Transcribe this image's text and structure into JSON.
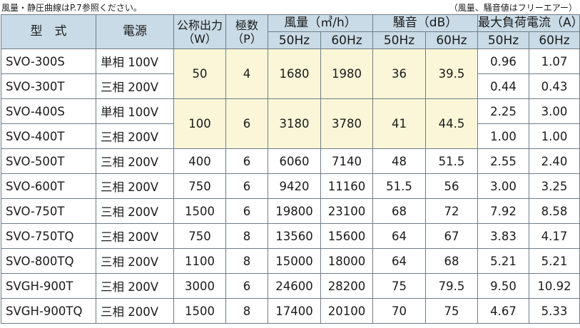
{
  "notes": {
    "left": "風量・静圧曲線はP.7参照ください。",
    "right": "（風量、騒音値はフリーエアー）"
  },
  "headers": {
    "model": "型　式",
    "power": "電源",
    "output": "公称出力",
    "output_unit": "（W）",
    "poles": "極数",
    "poles_unit": "（P）",
    "airflow": "風量（㎥/h）",
    "noise": "騒音（dB）",
    "current": "最大負荷電流（A）",
    "hz50": "50Hz",
    "hz60": "60Hz"
  },
  "rows": [
    {
      "model": "SVO-300S",
      "power": "単相 100V",
      "output": "50",
      "poles": "4",
      "air50": "1680",
      "air60": "1980",
      "noise50": "36",
      "noise60": "39.5",
      "cur50": "0.96",
      "cur60": "1.07"
    },
    {
      "model": "SVO-300T",
      "power": "三相 200V",
      "cur50": "0.44",
      "cur60": "0.43"
    },
    {
      "model": "SVO-400S",
      "power": "単相 100V",
      "output": "100",
      "poles": "6",
      "air50": "3180",
      "air60": "3780",
      "noise50": "41",
      "noise60": "44.5",
      "cur50": "2.25",
      "cur60": "3.00"
    },
    {
      "model": "SVO-400T",
      "power": "三相 200V",
      "cur50": "1.00",
      "cur60": "1.00"
    },
    {
      "model": "SVO-500T",
      "power": "三相 200V",
      "output": "400",
      "poles": "6",
      "air50": "6060",
      "air60": "7140",
      "noise50": "48",
      "noise60": "51.5",
      "cur50": "2.55",
      "cur60": "2.40"
    },
    {
      "model": "SVO-600T",
      "power": "三相 200V",
      "output": "750",
      "poles": "6",
      "air50": "9420",
      "air60": "11160",
      "noise50": "51.5",
      "noise60": "56",
      "cur50": "3.00",
      "cur60": "3.25"
    },
    {
      "model": "SVO-750T",
      "power": "三相 200V",
      "output": "1500",
      "poles": "6",
      "air50": "19800",
      "air60": "23100",
      "noise50": "68",
      "noise60": "72",
      "cur50": "7.92",
      "cur60": "8.58"
    },
    {
      "model": "SVO-750TQ",
      "power": "三相 200V",
      "output": "750",
      "poles": "8",
      "air50": "13560",
      "air60": "15600",
      "noise50": "64",
      "noise60": "67",
      "cur50": "3.83",
      "cur60": "4.17"
    },
    {
      "model": "SVO-800TQ",
      "power": "三相 200V",
      "output": "1100",
      "poles": "8",
      "air50": "15000",
      "air60": "18000",
      "noise50": "64",
      "noise60": "68",
      "cur50": "5.21",
      "cur60": "5.21"
    },
    {
      "model": "SVGH-900T",
      "power": "三相 200V",
      "output": "3000",
      "poles": "6",
      "air50": "24600",
      "air60": "28200",
      "noise50": "75",
      "noise60": "79.5",
      "cur50": "9.50",
      "cur60": "10.92"
    },
    {
      "model": "SVGH-900TQ",
      "power": "三相 200V",
      "output": "1500",
      "poles": "8",
      "air50": "17400",
      "air60": "20100",
      "noise50": "70",
      "noise60": "75",
      "cur50": "4.67",
      "cur60": "5.33"
    }
  ]
}
